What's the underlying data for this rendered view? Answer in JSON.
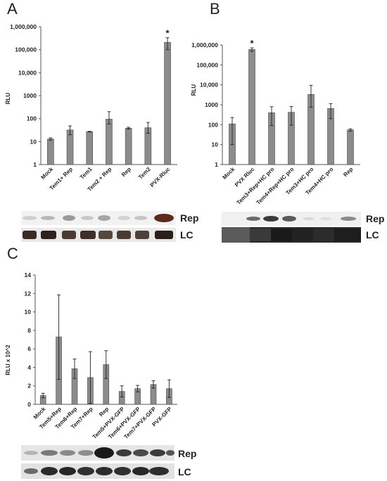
{
  "panels": {
    "a": "A",
    "b": "B",
    "c": "C"
  },
  "blots": {
    "a": {
      "rep": "Rep",
      "lc": "LC"
    },
    "b": {
      "rep": "Rep",
      "lc": "LC"
    },
    "c": {
      "rep": "Rep",
      "lc": "LC"
    }
  },
  "chart_data": [
    {
      "panel": "A",
      "type": "bar",
      "ylabel": "RLU",
      "yscale": "log",
      "ylim": [
        1,
        1000000
      ],
      "yticks": [
        "1",
        "10",
        "100",
        "1000",
        "10,000",
        "100,000",
        "1,000,000"
      ],
      "categories": [
        "Mock",
        "Tem1+ Rep",
        "Tem1",
        "Tem2 + Rep",
        "Rep",
        "Tem2",
        "PVX-Rluc"
      ],
      "values": [
        13,
        32,
        27,
        95,
        38,
        40,
        210000
      ],
      "err_low": [
        11.5,
        20,
        26,
        58,
        35,
        23,
        100000
      ],
      "err_high": [
        14.5,
        48,
        28,
        200,
        42,
        68,
        330000
      ],
      "significance": [
        "",
        "",
        "",
        "",
        "",
        "",
        "*"
      ],
      "bar_color": "#8c8c8c"
    },
    {
      "panel": "B",
      "type": "bar",
      "ylabel": "RLU",
      "yscale": "log",
      "ylim": [
        1,
        1000000
      ],
      "yticks": [
        "1",
        "10",
        "100",
        "1000",
        "10,000",
        "100,000",
        "1,000,000"
      ],
      "categories": [
        "Mock",
        "PVX Rluc",
        "Tem3+Rep+HC pro",
        "Tem4+Rep+HC pro",
        "Tem3+HC pro",
        "Tem4+HC pro",
        "Rep"
      ],
      "values": [
        110,
        600000,
        400,
        420,
        3300,
        650,
        55
      ],
      "err_low": [
        10,
        480000,
        90,
        95,
        750,
        200,
        47
      ],
      "err_high": [
        230,
        720000,
        800,
        820,
        9500,
        1150,
        62
      ],
      "significance": [
        "",
        "*",
        "",
        "",
        "",
        "",
        ""
      ],
      "bar_color": "#8c8c8c"
    },
    {
      "panel": "C",
      "type": "bar",
      "ylabel": "RLU x 10^2",
      "yscale": "linear",
      "ylim": [
        0,
        14
      ],
      "yticks": [
        "0",
        "2",
        "4",
        "6",
        "8",
        "10",
        "12",
        "14"
      ],
      "categories": [
        "Mock",
        "Tem5+Rep",
        "Tem6+Rep",
        "Tem7+Rep",
        "Rep",
        "Tem5+PVX-GFP",
        "Tem6+PVX-GFP",
        "Tem7+PVX-GFP",
        "PVX-GFP"
      ],
      "values": [
        0.95,
        7.3,
        3.85,
        2.9,
        4.3,
        1.4,
        1.7,
        2.15,
        1.7
      ],
      "err_low": [
        0.7,
        2.7,
        2.8,
        0.1,
        2.8,
        0.8,
        1.35,
        1.75,
        0.75
      ],
      "err_high": [
        1.2,
        11.85,
        4.9,
        5.7,
        5.8,
        2.0,
        2.05,
        2.55,
        2.65
      ],
      "bar_color": "#8c8c8c"
    }
  ]
}
